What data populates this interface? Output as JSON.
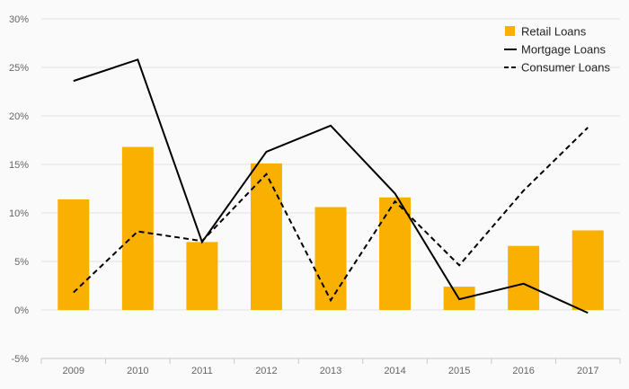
{
  "chart_data": {
    "type": "bar",
    "categories": [
      "2009",
      "2010",
      "2011",
      "2012",
      "2013",
      "2014",
      "2015",
      "2016",
      "2017"
    ],
    "series": [
      {
        "name": "Retail Loans",
        "type": "bar",
        "values": [
          11.4,
          16.8,
          7.0,
          15.1,
          10.6,
          11.6,
          2.4,
          6.6,
          8.2
        ]
      },
      {
        "name": "Mortgage Loans",
        "type": "line",
        "style": "solid",
        "values": [
          23.6,
          25.8,
          7.0,
          16.3,
          19.0,
          12.0,
          1.1,
          2.7,
          -0.3
        ]
      },
      {
        "name": "Consumer Loans",
        "type": "line",
        "style": "dashed",
        "values": [
          1.8,
          8.1,
          7.1,
          14.0,
          1.0,
          11.2,
          4.6,
          12.3,
          18.8
        ]
      }
    ],
    "title": "",
    "xlabel": "",
    "ylabel": "",
    "ylim": [
      -5,
      30
    ],
    "yticks": [
      "-5%",
      "0%",
      "5%",
      "10%",
      "15%",
      "20%",
      "25%",
      "30%"
    ],
    "ytick_values": [
      -5,
      0,
      5,
      10,
      15,
      20,
      25,
      30
    ],
    "grid": true,
    "legend_position": "top-right"
  },
  "colors": {
    "bar": "#f9b000",
    "line": "#000000",
    "grid": "#e3e3e3",
    "axis": "#c8c8c8",
    "background": "#fafafa"
  }
}
